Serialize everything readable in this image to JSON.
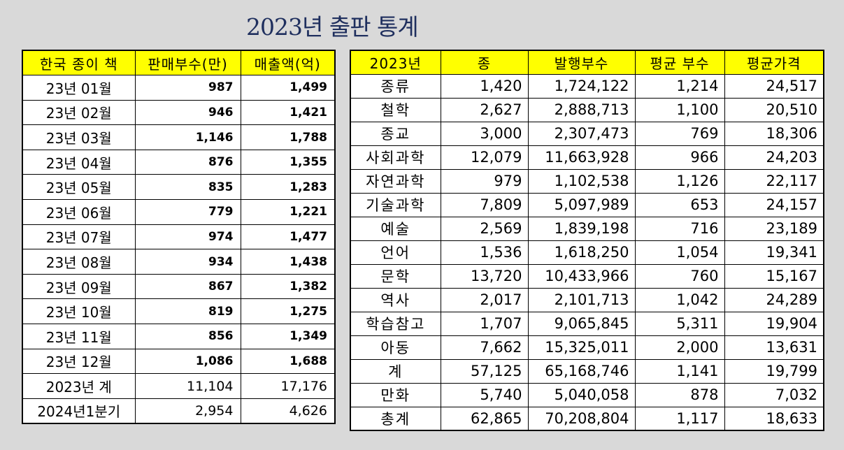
{
  "title": "2023년 출판 통계",
  "monthly": {
    "headers": [
      "한국 종이 책",
      "판매부수(만)",
      "매출액(억)"
    ],
    "rows": [
      [
        "23년 01월",
        "987",
        "1,499"
      ],
      [
        "23년 02월",
        "946",
        "1,421"
      ],
      [
        "23년 03월",
        "1,146",
        "1,788"
      ],
      [
        "23년 04월",
        "876",
        "1,355"
      ],
      [
        "23년 05월",
        "835",
        "1,283"
      ],
      [
        "23년 06월",
        "779",
        "1,221"
      ],
      [
        "23년 07월",
        "974",
        "1,477"
      ],
      [
        "23년 08월",
        "934",
        "1,438"
      ],
      [
        "23년 09월",
        "867",
        "1,382"
      ],
      [
        "23년 10월",
        "819",
        "1,275"
      ],
      [
        "23년 11월",
        "856",
        "1,349"
      ],
      [
        "23년 12월",
        "1,086",
        "1,688"
      ]
    ],
    "totals": [
      [
        "2023년 계",
        "11,104",
        "17,176"
      ],
      [
        "2024년1분기",
        "2,954",
        "4,626"
      ]
    ]
  },
  "genre": {
    "headers": [
      "2023년",
      "종",
      "발행부수",
      "평균 부수",
      "평균가격"
    ],
    "rows": [
      [
        "종류",
        "1,420",
        "1,724,122",
        "1,214",
        "24,517"
      ],
      [
        "철학",
        "2,627",
        "2,888,713",
        "1,100",
        "20,510"
      ],
      [
        "종교",
        "3,000",
        "2,307,473",
        "769",
        "18,306"
      ],
      [
        "사회과학",
        "12,079",
        "11,663,928",
        "966",
        "24,203"
      ],
      [
        "자연과학",
        "979",
        "1,102,538",
        "1,126",
        "22,117"
      ],
      [
        "기술과학",
        "7,809",
        "5,097,989",
        "653",
        "24,157"
      ],
      [
        "예술",
        "2,569",
        "1,839,198",
        "716",
        "23,189"
      ],
      [
        "언어",
        "1,536",
        "1,618,250",
        "1,054",
        "19,341"
      ],
      [
        "문학",
        "13,720",
        "10,433,966",
        "760",
        "15,167"
      ],
      [
        "역사",
        "2,017",
        "2,101,713",
        "1,042",
        "24,289"
      ],
      [
        "학습참고",
        "1,707",
        "9,065,845",
        "5,311",
        "19,904"
      ],
      [
        "아동",
        "7,662",
        "15,325,011",
        "2,000",
        "13,631"
      ],
      [
        "계",
        "57,125",
        "65,168,746",
        "1,141",
        "19,799"
      ],
      [
        "만화",
        "5,740",
        "5,040,058",
        "878",
        "7,032"
      ],
      [
        "총계",
        "62,865",
        "70,208,804",
        "1,117",
        "18,633"
      ]
    ]
  },
  "colors": {
    "header_bg": "#ffff00",
    "page_bg": "#d9d9d9",
    "title_color": "#1f2f5e"
  }
}
